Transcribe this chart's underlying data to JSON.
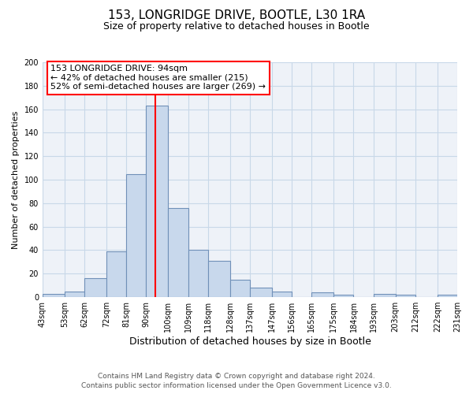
{
  "title": "153, LONGRIDGE DRIVE, BOOTLE, L30 1RA",
  "subtitle": "Size of property relative to detached houses in Bootle",
  "xlabel": "Distribution of detached houses by size in Bootle",
  "ylabel": "Number of detached properties",
  "bar_color": "#c8d8ec",
  "bar_edge_color": "#7090b8",
  "grid_color": "#c8d8e8",
  "background_color": "#ffffff",
  "plot_bg_color": "#eef2f8",
  "vline_x": 94,
  "vline_color": "red",
  "bin_edges": [
    43,
    53,
    62,
    72,
    81,
    90,
    100,
    109,
    118,
    128,
    137,
    147,
    156,
    165,
    175,
    184,
    193,
    203,
    212,
    222,
    231
  ],
  "bar_heights": [
    3,
    5,
    16,
    39,
    105,
    163,
    76,
    40,
    31,
    15,
    8,
    5,
    0,
    4,
    2,
    0,
    3,
    2,
    0,
    2
  ],
  "tick_labels": [
    "43sqm",
    "53sqm",
    "62sqm",
    "72sqm",
    "81sqm",
    "90sqm",
    "100sqm",
    "109sqm",
    "118sqm",
    "128sqm",
    "137sqm",
    "147sqm",
    "156sqm",
    "165sqm",
    "175sqm",
    "184sqm",
    "193sqm",
    "203sqm",
    "212sqm",
    "222sqm",
    "231sqm"
  ],
  "ylim": [
    0,
    200
  ],
  "yticks": [
    0,
    20,
    40,
    60,
    80,
    100,
    120,
    140,
    160,
    180,
    200
  ],
  "annotation_title": "153 LONGRIDGE DRIVE: 94sqm",
  "annotation_line1": "← 42% of detached houses are smaller (215)",
  "annotation_line2": "52% of semi-detached houses are larger (269) →",
  "footnote1": "Contains HM Land Registry data © Crown copyright and database right 2024.",
  "footnote2": "Contains public sector information licensed under the Open Government Licence v3.0.",
  "title_fontsize": 11,
  "subtitle_fontsize": 9,
  "ylabel_fontsize": 8,
  "xlabel_fontsize": 9,
  "tick_fontsize": 7,
  "annotation_fontsize": 8,
  "footnote_fontsize": 6.5
}
